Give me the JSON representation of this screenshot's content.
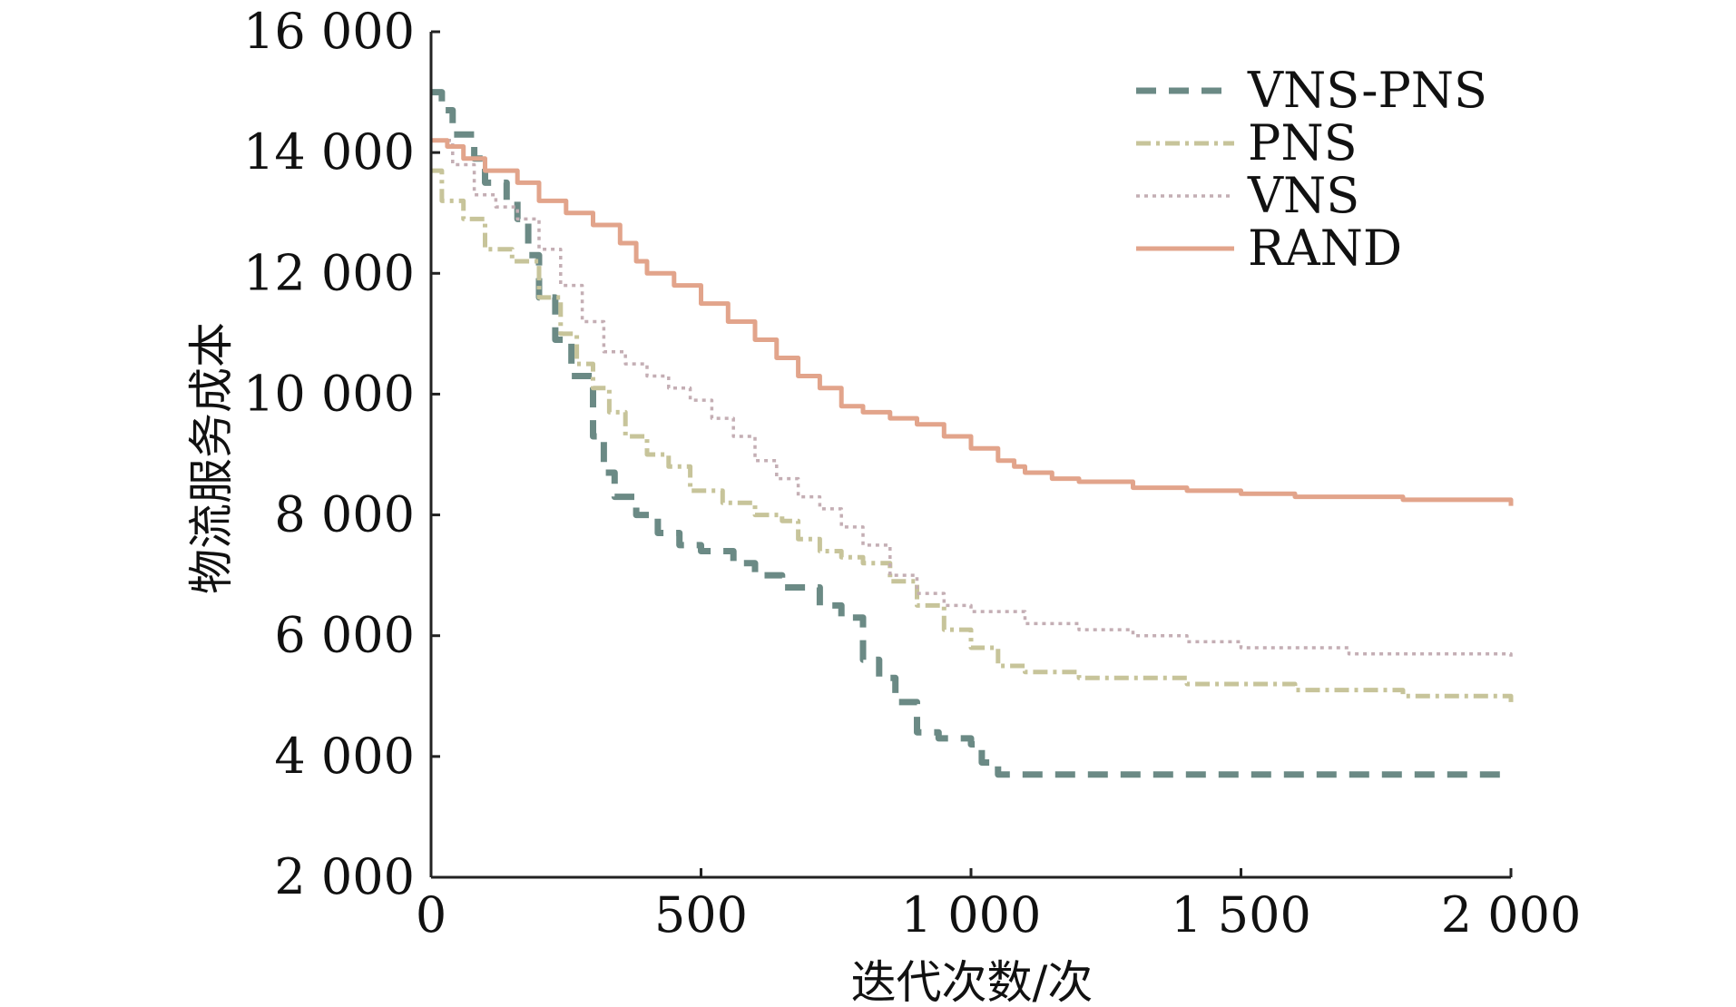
{
  "chart_data": {
    "type": "line",
    "title": "",
    "xlabel": "迭代次数/次",
    "ylabel": "物流服务成本",
    "xlim": [
      0,
      2000
    ],
    "ylim": [
      2000,
      16000
    ],
    "x_ticks": [
      0,
      500,
      1000,
      1500,
      2000
    ],
    "y_ticks": [
      2000,
      4000,
      6000,
      8000,
      10000,
      12000,
      14000,
      16000
    ],
    "x_tick_labels": [
      "0",
      "500",
      "1 000",
      "1 500",
      "2 000"
    ],
    "y_tick_labels": [
      "2 000",
      "4 000",
      "6 000",
      "8 000",
      "10 000",
      "12 000",
      "14 000",
      "16 000"
    ],
    "grid": false,
    "legend_position": "top-right",
    "series": [
      {
        "name": "VNS-PNS",
        "color": "#6b8a85",
        "style": "dashed",
        "x": [
          0,
          20,
          40,
          80,
          100,
          140,
          160,
          180,
          200,
          230,
          260,
          300,
          320,
          340,
          380,
          420,
          460,
          500,
          560,
          600,
          650,
          720,
          760,
          800,
          830,
          860,
          900,
          940,
          980,
          1000,
          1020,
          1050,
          1100,
          1200,
          1500,
          2000
        ],
        "y": [
          15000,
          14700,
          14300,
          13900,
          13500,
          13200,
          12900,
          12300,
          11600,
          10900,
          10300,
          9300,
          8700,
          8300,
          8000,
          7700,
          7500,
          7400,
          7200,
          7000,
          6800,
          6500,
          6300,
          5600,
          5300,
          4900,
          4400,
          4300,
          4300,
          4200,
          3900,
          3700,
          3700,
          3700,
          3700,
          3700
        ]
      },
      {
        "name": "PNS",
        "color": "#c7c49a",
        "style": "dash-dot",
        "x": [
          0,
          20,
          60,
          100,
          150,
          200,
          240,
          270,
          300,
          330,
          360,
          400,
          440,
          480,
          540,
          600,
          650,
          680,
          720,
          760,
          800,
          850,
          900,
          950,
          1000,
          1050,
          1100,
          1200,
          1400,
          1600,
          1800,
          2000
        ],
        "y": [
          13700,
          13200,
          12900,
          12400,
          12200,
          11600,
          11000,
          10500,
          10100,
          9700,
          9300,
          9000,
          8800,
          8400,
          8200,
          8000,
          7900,
          7600,
          7400,
          7300,
          7200,
          6900,
          6500,
          6100,
          5800,
          5500,
          5400,
          5300,
          5200,
          5100,
          5000,
          4900
        ]
      },
      {
        "name": "VNS",
        "color": "#c4aeb4",
        "style": "dotted",
        "x": [
          0,
          40,
          80,
          120,
          160,
          200,
          240,
          280,
          320,
          360,
          400,
          440,
          480,
          520,
          560,
          600,
          640,
          680,
          720,
          760,
          800,
          850,
          900,
          950,
          1000,
          1100,
          1200,
          1300,
          1400,
          1500,
          1700,
          2000
        ],
        "y": [
          14200,
          13800,
          13300,
          13100,
          12900,
          12400,
          11800,
          11200,
          10700,
          10500,
          10300,
          10100,
          9900,
          9600,
          9300,
          8900,
          8600,
          8300,
          8100,
          7800,
          7500,
          7000,
          6700,
          6500,
          6400,
          6200,
          6100,
          6000,
          5900,
          5800,
          5700,
          5600
        ]
      },
      {
        "name": "RAND",
        "color": "#e2a48b",
        "style": "solid",
        "x": [
          0,
          30,
          60,
          100,
          160,
          200,
          250,
          300,
          350,
          380,
          400,
          450,
          500,
          550,
          600,
          640,
          680,
          720,
          760,
          800,
          850,
          900,
          950,
          1000,
          1050,
          1080,
          1100,
          1150,
          1200,
          1300,
          1400,
          1500,
          1600,
          1800,
          2000
        ],
        "y": [
          14200,
          14100,
          13900,
          13700,
          13500,
          13200,
          13000,
          12800,
          12500,
          12200,
          12000,
          11800,
          11500,
          11200,
          10900,
          10600,
          10300,
          10100,
          9800,
          9700,
          9600,
          9500,
          9300,
          9100,
          8900,
          8800,
          8700,
          8600,
          8550,
          8450,
          8400,
          8350,
          8300,
          8250,
          8150
        ]
      }
    ]
  }
}
